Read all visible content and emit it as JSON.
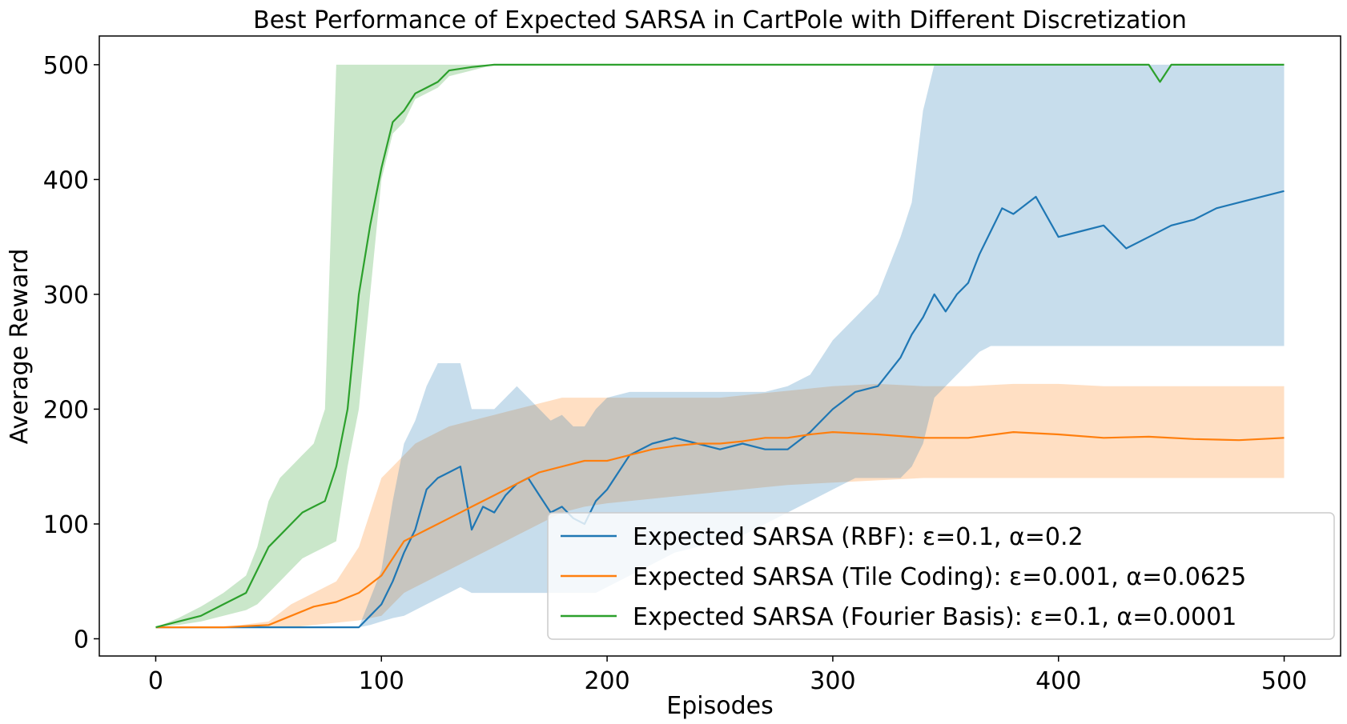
{
  "chart_data": {
    "type": "line",
    "title": "Best Performance of Expected SARSA in CartPole with Different Discretization",
    "xlabel": "Episodes",
    "ylabel": "Average Reward",
    "xlim": [
      -25,
      525
    ],
    "ylim": [
      -15,
      525
    ],
    "xticks": [
      0,
      100,
      200,
      300,
      400,
      500
    ],
    "yticks": [
      0,
      100,
      200,
      300,
      400,
      500
    ],
    "grid": false,
    "legend_position": "lower-right",
    "series": [
      {
        "name": "Expected SARSA (RBF): ε=0.1, α=0.2",
        "color": "#1f77b4",
        "x": [
          0,
          40,
          70,
          90,
          95,
          100,
          105,
          110,
          115,
          120,
          125,
          130,
          135,
          140,
          145,
          150,
          155,
          160,
          165,
          170,
          175,
          180,
          185,
          190,
          195,
          200,
          210,
          220,
          230,
          240,
          250,
          260,
          270,
          280,
          290,
          300,
          310,
          320,
          330,
          335,
          340,
          345,
          350,
          355,
          360,
          365,
          370,
          375,
          380,
          390,
          400,
          410,
          420,
          430,
          440,
          450,
          460,
          470,
          480,
          490,
          500
        ],
        "y": [
          10,
          10,
          10,
          10,
          20,
          30,
          50,
          75,
          95,
          130,
          140,
          145,
          150,
          95,
          115,
          110,
          125,
          135,
          140,
          125,
          110,
          115,
          105,
          100,
          120,
          130,
          160,
          170,
          175,
          170,
          165,
          170,
          165,
          165,
          180,
          200,
          215,
          220,
          245,
          265,
          280,
          300,
          285,
          300,
          310,
          335,
          355,
          375,
          370,
          385,
          350,
          355,
          360,
          340,
          350,
          360,
          365,
          375,
          380,
          385,
          390
        ],
        "band_low": [
          10,
          10,
          10,
          10,
          12,
          15,
          18,
          20,
          25,
          30,
          35,
          40,
          45,
          40,
          40,
          40,
          40,
          40,
          40,
          40,
          40,
          40,
          40,
          40,
          40,
          45,
          55,
          65,
          75,
          80,
          85,
          90,
          100,
          110,
          120,
          130,
          140,
          140,
          140,
          150,
          170,
          210,
          220,
          230,
          240,
          250,
          255,
          255,
          255,
          255,
          255,
          255,
          255,
          255,
          255,
          255,
          255,
          255,
          255,
          255,
          255
        ],
        "band_high": [
          10,
          10,
          10,
          10,
          35,
          60,
          120,
          170,
          190,
          220,
          240,
          240,
          240,
          200,
          200,
          200,
          210,
          220,
          210,
          200,
          190,
          195,
          185,
          185,
          200,
          210,
          215,
          215,
          215,
          215,
          215,
          215,
          215,
          220,
          230,
          260,
          280,
          300,
          350,
          380,
          460,
          500,
          500,
          500,
          500,
          500,
          500,
          500,
          500,
          500,
          500,
          500,
          500,
          500,
          500,
          500,
          500,
          500,
          500,
          500,
          500
        ]
      },
      {
        "name": "Expected SARSA (Tile Coding): ε=0.001, α=0.0625",
        "color": "#ff7f0e",
        "x": [
          0,
          30,
          50,
          60,
          70,
          80,
          90,
          100,
          105,
          110,
          115,
          120,
          125,
          130,
          140,
          150,
          160,
          170,
          180,
          190,
          200,
          210,
          220,
          230,
          240,
          250,
          260,
          270,
          280,
          290,
          300,
          320,
          340,
          360,
          380,
          400,
          420,
          440,
          460,
          480,
          500
        ],
        "y": [
          10,
          10,
          12,
          20,
          28,
          32,
          40,
          55,
          70,
          85,
          90,
          95,
          100,
          105,
          115,
          125,
          135,
          145,
          150,
          155,
          155,
          160,
          165,
          168,
          170,
          170,
          172,
          175,
          175,
          178,
          180,
          178,
          175,
          175,
          180,
          178,
          175,
          176,
          174,
          173,
          175
        ],
        "band_low": [
          10,
          10,
          10,
          10,
          12,
          14,
          16,
          20,
          30,
          40,
          45,
          50,
          55,
          60,
          70,
          80,
          90,
          100,
          110,
          115,
          118,
          120,
          122,
          124,
          126,
          128,
          130,
          132,
          134,
          135,
          136,
          138,
          140,
          140,
          140,
          140,
          140,
          140,
          140,
          140,
          140
        ],
        "band_high": [
          10,
          10,
          15,
          30,
          40,
          50,
          80,
          140,
          150,
          160,
          170,
          175,
          180,
          185,
          190,
          195,
          200,
          205,
          210,
          210,
          210,
          210,
          210,
          210,
          210,
          210,
          212,
          214,
          216,
          218,
          220,
          222,
          220,
          220,
          222,
          222,
          220,
          220,
          220,
          220,
          220
        ]
      },
      {
        "name": "Expected SARSA (Fourier Basis): ε=0.1, α=0.0001",
        "color": "#2ca02c",
        "x": [
          0,
          10,
          20,
          30,
          40,
          45,
          50,
          55,
          60,
          65,
          70,
          75,
          80,
          85,
          90,
          95,
          100,
          105,
          110,
          115,
          120,
          125,
          130,
          140,
          150,
          160,
          170,
          180,
          200,
          250,
          300,
          400,
          440,
          445,
          450,
          500
        ],
        "y": [
          10,
          15,
          20,
          30,
          40,
          60,
          80,
          90,
          100,
          110,
          115,
          120,
          150,
          200,
          300,
          360,
          410,
          450,
          460,
          475,
          480,
          485,
          495,
          498,
          500,
          500,
          500,
          500,
          500,
          500,
          500,
          500,
          500,
          485,
          500,
          500
        ],
        "band_low": [
          10,
          12,
          15,
          20,
          25,
          30,
          40,
          50,
          60,
          70,
          75,
          80,
          85,
          150,
          200,
          300,
          400,
          440,
          450,
          470,
          475,
          480,
          490,
          495,
          500,
          500,
          500,
          500,
          500,
          500,
          500,
          500,
          500,
          485,
          500,
          500
        ],
        "band_high": [
          10,
          18,
          28,
          40,
          55,
          80,
          120,
          140,
          150,
          160,
          170,
          200,
          500,
          500,
          500,
          500,
          500,
          500,
          500,
          500,
          500,
          500,
          500,
          500,
          500,
          500,
          500,
          500,
          500,
          500,
          500,
          500,
          500,
          485,
          500,
          500
        ]
      }
    ]
  }
}
